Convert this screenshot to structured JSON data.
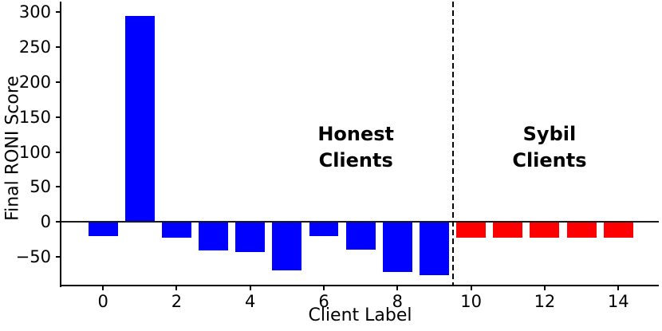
{
  "chart_data": {
    "type": "bar",
    "title": "",
    "xlabel": "Client Label",
    "ylabel": "Final RONI Score",
    "bar_width": 0.8,
    "grid": false,
    "legend": null,
    "xlim": [
      -1.13,
      15.1
    ],
    "ylim": [
      -91,
      315
    ],
    "xticks": [
      0,
      2,
      4,
      6,
      8,
      10,
      12,
      14
    ],
    "yticks": [
      300,
      250,
      200,
      150,
      100,
      50,
      0,
      -50
    ],
    "zero_line": {
      "y": 0,
      "color": "#1a1a1a"
    },
    "divider": {
      "x": 9.5,
      "style": "dashed",
      "color": "#000000"
    },
    "series": [
      {
        "name": "Honest Clients",
        "color": "#0000ff",
        "x": [
          0,
          1,
          2,
          3,
          4,
          5,
          6,
          7,
          8,
          9
        ],
        "values": [
          -20,
          295,
          -23,
          -41,
          -43,
          -69,
          -20,
          -40,
          -72,
          -76
        ]
      },
      {
        "name": "Sybil Clients",
        "color": "#ff0000",
        "x": [
          10,
          11,
          12,
          13,
          14
        ],
        "values": [
          -23,
          -23,
          -23,
          -23,
          -23
        ]
      }
    ],
    "annotations": [
      {
        "text": "Honest\nClients",
        "x": 6.87,
        "y": 106
      },
      {
        "text": "Sybil\nClients",
        "x": 12.13,
        "y": 106
      }
    ]
  }
}
